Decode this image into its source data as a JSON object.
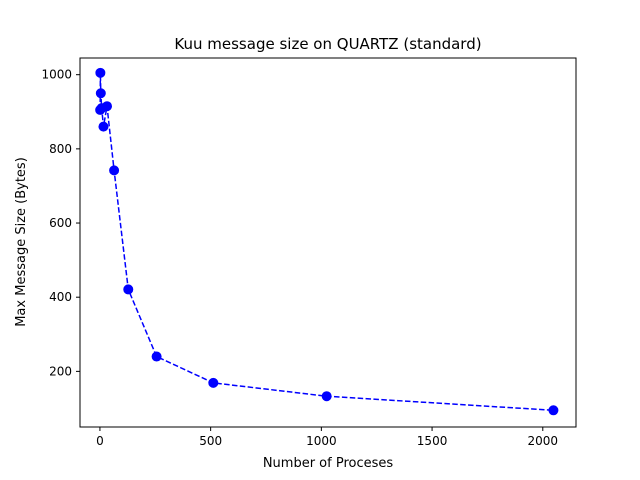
{
  "chart_data": {
    "type": "line",
    "title": "Kuu message size on QUARTZ (standard)",
    "xlabel": "Number of Proceses",
    "ylabel": "Max Message Size (Bytes)",
    "xlim": [
      -90,
      2150
    ],
    "ylim": [
      50,
      1045
    ],
    "xticks": [
      0,
      500,
      1000,
      1500,
      2000
    ],
    "yticks": [
      200,
      400,
      600,
      800,
      1000
    ],
    "xtick_labels": [
      "0",
      "500",
      "1000",
      "1500",
      "2000"
    ],
    "ytick_labels": [
      "200",
      "400",
      "600",
      "800",
      "1000"
    ],
    "grid": false,
    "series": [
      {
        "color": "#0000ff",
        "line_style": "dashed",
        "marker": "circle",
        "x": [
          1,
          2,
          4,
          8,
          16,
          32,
          64,
          128,
          256,
          512,
          1024,
          2048
        ],
        "y": [
          905,
          1005,
          950,
          910,
          860,
          915,
          742,
          421,
          240,
          169,
          133,
          95
        ]
      }
    ]
  }
}
